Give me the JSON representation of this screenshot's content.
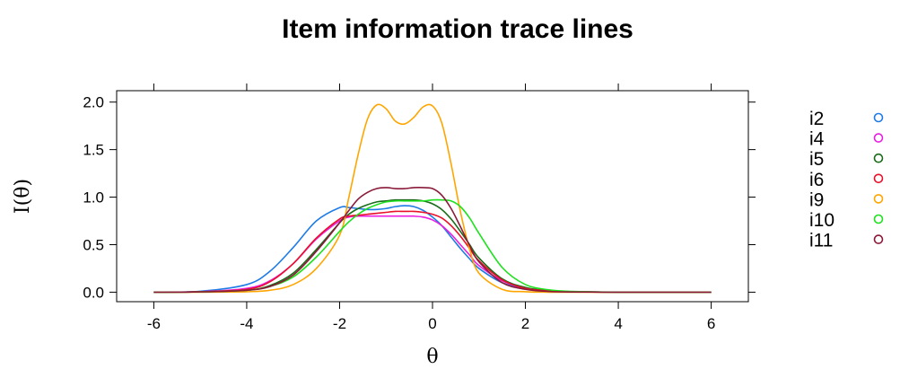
{
  "chart_data": {
    "type": "line",
    "title": "Item information trace lines",
    "xlabel": "θ",
    "ylabel": "I(θ)",
    "xlim": [
      -6.8,
      6.8
    ],
    "ylim": [
      -0.1,
      2.12
    ],
    "xticks": [
      -6,
      -4,
      -2,
      0,
      2,
      4,
      6
    ],
    "yticks": [
      0.0,
      0.5,
      1.0,
      1.5,
      2.0
    ],
    "ytick_labels": [
      "0.0",
      "0.5",
      "1.0",
      "1.5",
      "2.0"
    ],
    "xtick_labels": [
      "-6",
      "-4",
      "-2",
      "0",
      "2",
      "4",
      "6"
    ],
    "grid": false,
    "legend_position": "right",
    "x": [
      -6,
      -5,
      -4,
      -3.5,
      -3,
      -2.5,
      -2,
      -1.8,
      -1.6,
      -1.4,
      -1.2,
      -1.0,
      -0.8,
      -0.6,
      -0.4,
      -0.2,
      0,
      0.2,
      0.4,
      0.6,
      0.8,
      1.0,
      1.5,
      2,
      2.5,
      3,
      4,
      5,
      6
    ],
    "series": [
      {
        "name": "i2",
        "color": "#1e7be6",
        "values": [
          0,
          0.01,
          0.08,
          0.22,
          0.47,
          0.75,
          0.89,
          0.89,
          0.88,
          0.87,
          0.87,
          0.88,
          0.9,
          0.91,
          0.9,
          0.86,
          0.79,
          0.7,
          0.58,
          0.46,
          0.35,
          0.25,
          0.1,
          0.04,
          0.015,
          0.005,
          0,
          0,
          0
        ]
      },
      {
        "name": "i4",
        "color": "#e81ee0",
        "values": [
          0,
          0.005,
          0.04,
          0.12,
          0.3,
          0.56,
          0.75,
          0.79,
          0.8,
          0.8,
          0.8,
          0.8,
          0.8,
          0.8,
          0.8,
          0.79,
          0.76,
          0.7,
          0.61,
          0.5,
          0.39,
          0.28,
          0.12,
          0.04,
          0.015,
          0.005,
          0,
          0,
          0
        ]
      },
      {
        "name": "i5",
        "color": "#1a6b1a",
        "values": [
          0,
          0.003,
          0.02,
          0.07,
          0.2,
          0.45,
          0.73,
          0.82,
          0.88,
          0.92,
          0.95,
          0.96,
          0.97,
          0.97,
          0.97,
          0.96,
          0.93,
          0.87,
          0.77,
          0.64,
          0.5,
          0.36,
          0.14,
          0.05,
          0.015,
          0.005,
          0,
          0,
          0
        ]
      },
      {
        "name": "i6",
        "color": "#e8102a",
        "values": [
          0,
          0.005,
          0.03,
          0.11,
          0.3,
          0.57,
          0.77,
          0.8,
          0.81,
          0.82,
          0.83,
          0.84,
          0.85,
          0.85,
          0.85,
          0.84,
          0.82,
          0.78,
          0.7,
          0.59,
          0.46,
          0.33,
          0.13,
          0.04,
          0.015,
          0.005,
          0,
          0,
          0
        ]
      },
      {
        "name": "i9",
        "color": "#ffa500",
        "values": [
          0,
          0,
          0.005,
          0.02,
          0.08,
          0.25,
          0.6,
          1.0,
          1.45,
          1.82,
          1.97,
          1.93,
          1.8,
          1.77,
          1.84,
          1.95,
          1.96,
          1.78,
          1.35,
          0.85,
          0.45,
          0.2,
          0.03,
          0.005,
          0,
          0,
          0,
          0,
          0
        ]
      },
      {
        "name": "i10",
        "color": "#1ee01e",
        "values": [
          0,
          0.003,
          0.02,
          0.06,
          0.16,
          0.37,
          0.64,
          0.74,
          0.82,
          0.88,
          0.92,
          0.95,
          0.96,
          0.96,
          0.96,
          0.96,
          0.97,
          0.97,
          0.96,
          0.9,
          0.78,
          0.62,
          0.26,
          0.08,
          0.025,
          0.008,
          0,
          0,
          0
        ]
      },
      {
        "name": "i11",
        "color": "#8b1a3a",
        "values": [
          0,
          0.003,
          0.02,
          0.06,
          0.18,
          0.43,
          0.73,
          0.86,
          0.98,
          1.05,
          1.09,
          1.1,
          1.09,
          1.09,
          1.1,
          1.1,
          1.09,
          1.02,
          0.88,
          0.69,
          0.49,
          0.32,
          0.1,
          0.03,
          0.008,
          0.002,
          0,
          0,
          0
        ]
      }
    ]
  }
}
